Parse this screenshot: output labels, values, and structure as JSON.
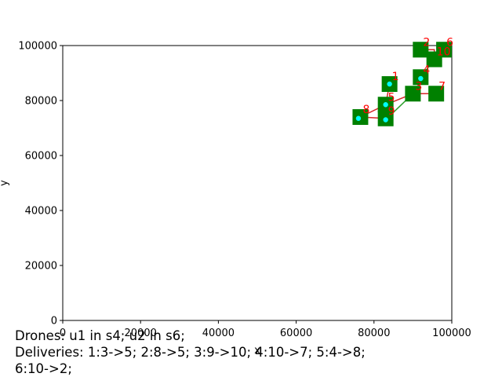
{
  "chart_data": {
    "type": "scatter",
    "title": "",
    "xlabel": "x",
    "ylabel": "y",
    "xlim": [
      0,
      100000
    ],
    "ylim": [
      0,
      100000
    ],
    "x_ticks": [
      0,
      20000,
      40000,
      60000,
      80000,
      100000
    ],
    "y_ticks": [
      0,
      20000,
      40000,
      60000,
      80000,
      100000
    ],
    "x_tick_labels": [
      "0",
      "20000",
      "40000",
      "60000",
      "80000",
      "100000"
    ],
    "y_tick_labels": [
      "0",
      "20000",
      "40000",
      "60000",
      "80000",
      "100000"
    ],
    "grid": false,
    "node_color": "#008000",
    "route_colors": {
      "red": "#d62728",
      "green": "#2ca02c"
    },
    "points": [
      {
        "label": "1",
        "x": 84000,
        "y": 86000
      },
      {
        "label": "2",
        "x": 92000,
        "y": 98500
      },
      {
        "label": "3",
        "x": 90000,
        "y": 82500
      },
      {
        "label": "4",
        "x": 92000,
        "y": 88500
      },
      {
        "label": "5",
        "x": 83000,
        "y": 78500
      },
      {
        "label": "6",
        "x": 98000,
        "y": 98500
      },
      {
        "label": "7",
        "x": 96000,
        "y": 82500
      },
      {
        "label": "8",
        "x": 76500,
        "y": 74000
      },
      {
        "label": "9",
        "x": 83000,
        "y": 73500
      },
      {
        "label": "10",
        "x": 95500,
        "y": 95000
      }
    ],
    "drone_points": [
      {
        "x": 84000,
        "y": 86000
      },
      {
        "x": 83000,
        "y": 78500
      },
      {
        "x": 83000,
        "y": 73000
      },
      {
        "x": 76000,
        "y": 73500
      },
      {
        "x": 92000,
        "y": 88000
      }
    ],
    "routes": [
      {
        "color": "red",
        "points": [
          [
            83000,
            73500
          ],
          [
            76500,
            74000
          ],
          [
            83000,
            78500
          ],
          [
            90000,
            82500
          ],
          [
            96000,
            82500
          ]
        ]
      },
      {
        "color": "red",
        "points": [
          [
            84000,
            86000
          ],
          [
            83000,
            78500
          ]
        ]
      },
      {
        "color": "red",
        "points": [
          [
            95500,
            95000
          ],
          [
            95500,
            98500
          ],
          [
            92000,
            98500
          ]
        ]
      },
      {
        "color": "green",
        "points": [
          [
            83000,
            73000
          ],
          [
            90000,
            82500
          ]
        ]
      },
      {
        "color": "green",
        "points": [
          [
            92000,
            88500
          ],
          [
            95500,
            95000
          ],
          [
            98000,
            98500
          ]
        ]
      }
    ]
  },
  "caption": {
    "line1": "Drones: u1 in s4; u2 in s6;",
    "line2": "Deliveries: 1:3->5; 2:8->5; 3:9->10; 4:10->7; 5:4->8;",
    "line3": "6:10->2;"
  }
}
